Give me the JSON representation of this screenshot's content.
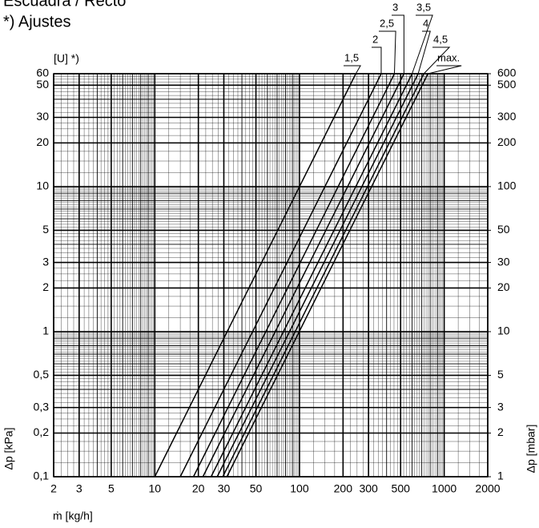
{
  "chart_data": {
    "type": "line",
    "title": "Escuadra / Recto",
    "subtitle": "*) Ajustes",
    "series_label": "[U] *)",
    "x_label": "ṁ [kg/h]",
    "y_label": "Δp [kPa]",
    "y2_label": "Δp [mbar]",
    "xscale": "log",
    "yscale": "log",
    "grid": true,
    "xlim": [
      2,
      2000
    ],
    "xticks": [
      2,
      3,
      5,
      10,
      20,
      30,
      50,
      100,
      200,
      300,
      500,
      1000,
      2000
    ],
    "ylim": [
      0.1,
      60
    ],
    "yticks": [
      {
        "value": 0.1,
        "label": "0,1"
      },
      {
        "value": 0.2,
        "label": "0,2"
      },
      {
        "value": 0.3,
        "label": "0,3"
      },
      {
        "value": 0.5,
        "label": "0,5"
      },
      1,
      2,
      3,
      5,
      10,
      20,
      30,
      50,
      60
    ],
    "y2lim": [
      1,
      600
    ],
    "y2ticks": [
      1,
      2,
      3,
      5,
      10,
      20,
      30,
      50,
      100,
      200,
      300,
      500,
      600
    ],
    "series": [
      {
        "name": "1,5",
        "color": "#000000",
        "x": [
          10,
          245
        ],
        "values": [
          0.1,
          60
        ]
      },
      {
        "name": "2",
        "color": "#000000",
        "x": [
          15,
          367
        ],
        "values": [
          0.1,
          60
        ]
      },
      {
        "name": "2,5",
        "color": "#000000",
        "x": [
          18.5,
          453
        ],
        "values": [
          0.1,
          60
        ]
      },
      {
        "name": "3",
        "color": "#000000",
        "x": [
          21.5,
          527
        ],
        "values": [
          0.1,
          60
        ]
      },
      {
        "name": "3,5",
        "color": "#000000",
        "x": [
          24.5,
          600
        ],
        "values": [
          0.1,
          60
        ]
      },
      {
        "name": "4",
        "color": "#000000",
        "x": [
          27,
          661
        ],
        "values": [
          0.1,
          60
        ]
      },
      {
        "name": "4,5",
        "color": "#000000",
        "x": [
          29.5,
          723
        ],
        "values": [
          0.1,
          60
        ]
      },
      {
        "name": "max.",
        "color": "#000000",
        "x": [
          31.5,
          772
        ],
        "values": [
          0.1,
          60
        ]
      }
    ]
  }
}
